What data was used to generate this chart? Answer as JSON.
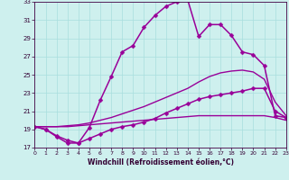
{
  "xlabel": "Windchill (Refroidissement éolien,°C)",
  "xlim": [
    0,
    23
  ],
  "ylim": [
    17,
    33
  ],
  "yticks": [
    17,
    19,
    21,
    23,
    25,
    27,
    29,
    31,
    33
  ],
  "xticks": [
    0,
    1,
    2,
    3,
    4,
    5,
    6,
    7,
    8,
    9,
    10,
    11,
    12,
    13,
    14,
    15,
    16,
    17,
    18,
    19,
    20,
    21,
    22,
    23
  ],
  "bg_color": "#cef0ee",
  "grid_color": "#a8dede",
  "line_color": "#990099",
  "lines": [
    {
      "x": [
        0,
        1,
        2,
        3,
        4,
        5,
        6,
        7,
        8,
        9,
        10,
        11,
        12,
        13,
        14,
        15,
        16,
        17,
        18,
        19,
        20,
        21,
        22,
        23
      ],
      "y": [
        19.3,
        19.0,
        18.2,
        17.5,
        17.5,
        19.2,
        22.2,
        24.8,
        27.5,
        28.2,
        30.2,
        31.5,
        32.5,
        33.0,
        33.2,
        29.2,
        30.5,
        30.5,
        29.3,
        27.5,
        27.2,
        26.0,
        20.5,
        20.3
      ],
      "has_marker": true,
      "marker": "D",
      "markersize": 2.5,
      "linewidth": 1.1
    },
    {
      "x": [
        0,
        1,
        2,
        3,
        4,
        5,
        6,
        7,
        8,
        9,
        10,
        11,
        12,
        13,
        14,
        15,
        16,
        17,
        18,
        19,
        20,
        21,
        22,
        23
      ],
      "y": [
        19.3,
        19.0,
        18.3,
        17.8,
        17.5,
        18.0,
        18.5,
        19.0,
        19.3,
        19.5,
        19.8,
        20.2,
        20.8,
        21.3,
        21.8,
        22.3,
        22.6,
        22.8,
        23.0,
        23.2,
        23.5,
        23.5,
        21.0,
        20.3
      ],
      "has_marker": true,
      "marker": "D",
      "markersize": 2.5,
      "linewidth": 1.1
    },
    {
      "x": [
        0,
        1,
        2,
        3,
        4,
        5,
        6,
        7,
        8,
        9,
        10,
        11,
        12,
        13,
        14,
        15,
        16,
        17,
        18,
        19,
        20,
        21,
        22,
        23
      ],
      "y": [
        19.3,
        19.3,
        19.3,
        19.4,
        19.5,
        19.7,
        20.0,
        20.3,
        20.7,
        21.1,
        21.5,
        22.0,
        22.5,
        23.0,
        23.5,
        24.2,
        24.8,
        25.2,
        25.4,
        25.5,
        25.3,
        24.5,
        22.0,
        20.5
      ],
      "has_marker": false,
      "marker": null,
      "markersize": 0,
      "linewidth": 1.0
    },
    {
      "x": [
        0,
        1,
        2,
        3,
        4,
        5,
        6,
        7,
        8,
        9,
        10,
        11,
        12,
        13,
        14,
        15,
        16,
        17,
        18,
        19,
        20,
        21,
        22,
        23
      ],
      "y": [
        19.3,
        19.3,
        19.3,
        19.3,
        19.4,
        19.5,
        19.6,
        19.7,
        19.8,
        19.9,
        20.0,
        20.1,
        20.2,
        20.3,
        20.4,
        20.5,
        20.5,
        20.5,
        20.5,
        20.5,
        20.5,
        20.5,
        20.3,
        20.0
      ],
      "has_marker": false,
      "marker": null,
      "markersize": 0,
      "linewidth": 1.0
    }
  ]
}
